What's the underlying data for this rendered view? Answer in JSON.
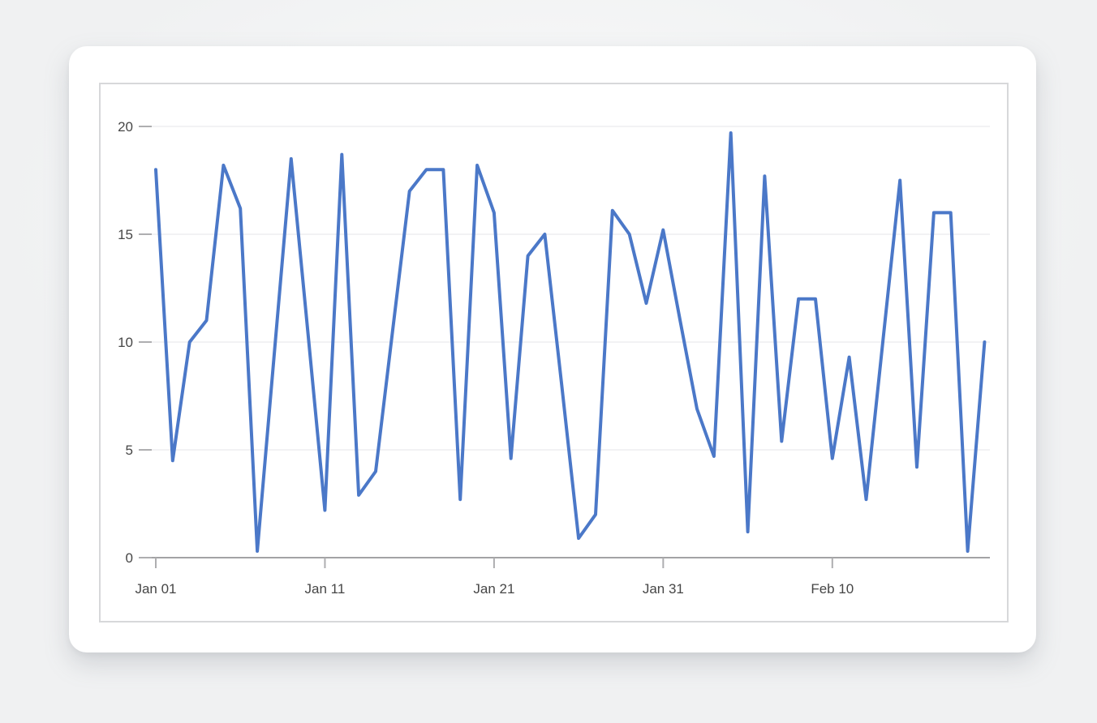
{
  "page": {
    "background_color": "#f0f1f2"
  },
  "card": {
    "background_color": "#ffffff",
    "panel_border_color": "#d7d8da"
  },
  "chart_data": {
    "type": "line",
    "title": "",
    "xlabel": "",
    "ylabel": "",
    "x": [
      "Jan 01",
      "Jan 02",
      "Jan 03",
      "Jan 04",
      "Jan 05",
      "Jan 06",
      "Jan 07",
      "Jan 08",
      "Jan 09",
      "Jan 10",
      "Jan 11",
      "Jan 12",
      "Jan 13",
      "Jan 14",
      "Jan 15",
      "Jan 16",
      "Jan 17",
      "Jan 18",
      "Jan 19",
      "Jan 20",
      "Jan 21",
      "Jan 22",
      "Jan 23",
      "Jan 24",
      "Jan 25",
      "Jan 26",
      "Jan 27",
      "Jan 28",
      "Jan 29",
      "Jan 30",
      "Jan 31",
      "Feb 01",
      "Feb 02",
      "Feb 03",
      "Feb 04",
      "Feb 05",
      "Feb 06",
      "Feb 07",
      "Feb 08",
      "Feb 09",
      "Feb 10",
      "Feb 11",
      "Feb 12",
      "Feb 13",
      "Feb 14",
      "Feb 15",
      "Feb 16",
      "Feb 17",
      "Feb 18",
      "Feb 19"
    ],
    "values": [
      18,
      4.5,
      10,
      11,
      18.2,
      16.2,
      0.3,
      9.4,
      18.5,
      10.4,
      2.2,
      18.7,
      2.9,
      4,
      10.5,
      17,
      18,
      18,
      2.7,
      18.2,
      16,
      4.6,
      14,
      15,
      8,
      0.9,
      2,
      16.1,
      15,
      11.8,
      15.2,
      11,
      6.9,
      4.7,
      19.7,
      1.2,
      17.7,
      5.4,
      12,
      12,
      4.6,
      9.3,
      2.7,
      10.1,
      17.5,
      4.2,
      16,
      16,
      0.3,
      10
    ],
    "x_tick_labels": [
      "Jan 01",
      "Jan 11",
      "Jan 21",
      "Jan 31",
      "Feb 10"
    ],
    "x_tick_point_indexes": [
      0,
      10,
      20,
      30,
      40
    ],
    "y_ticks": [
      0,
      5,
      10,
      15,
      20
    ],
    "ylim": [
      0,
      20
    ],
    "grid": true,
    "legend_position": "none",
    "line_color": "#4b78c8",
    "line_width": 4,
    "gridline_color": "#ededf0",
    "axis_line_color": "#a3a3a5",
    "tick_mark_color": "#aeaeb0",
    "label_color": "#464646",
    "label_font_size": 17
  }
}
